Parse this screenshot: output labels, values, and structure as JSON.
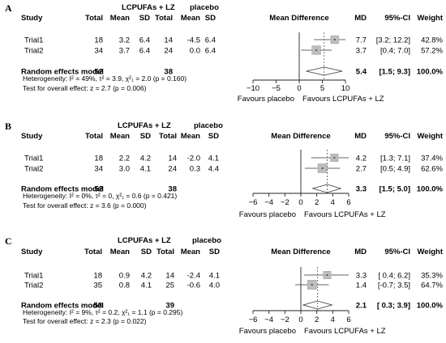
{
  "chart_data": [
    {
      "type": "forest",
      "panel_label": "A",
      "headers": {
        "study": "Study",
        "treatment_group": "LCPUFAs + LZ",
        "control_group": "placebo",
        "total": "Total",
        "mean": "Mean",
        "sd": "SD",
        "plot_title": "Mean Difference",
        "md": "MD",
        "ci": "95%-CI",
        "weight": "Weight"
      },
      "studies": [
        {
          "name": "Trial1",
          "t_total": "18",
          "t_mean": "3.2",
          "t_sd": "6.4",
          "c_total": "14",
          "c_mean": "-4.5",
          "c_sd": "6.4",
          "md": 7.7,
          "ci_low": 3.2,
          "ci_high": 12.2,
          "md_text": "7.7",
          "ci_text": "[3.2; 12.2]",
          "weight_text": "42.8%"
        },
        {
          "name": "Trial2",
          "t_total": "34",
          "t_mean": "3.7",
          "t_sd": "6.4",
          "c_total": "24",
          "c_mean": "0.0",
          "c_sd": "6.4",
          "md": 3.7,
          "ci_low": 0.4,
          "ci_high": 7.0,
          "md_text": "3.7",
          "ci_text": "[0.4; 7.0]",
          "weight_text": "57.2%"
        }
      ],
      "pooled": {
        "label": "Random effects model",
        "t_total": "52",
        "c_total": "38",
        "md": 5.4,
        "ci_low": 1.5,
        "ci_high": 9.3,
        "md_text": "5.4",
        "ci_text": "[1.5; 9.3]",
        "weight_text": "100.0%"
      },
      "heterogeneity": "Heterogeneity: I² = 49%, τ² = 3.9, χ²₁ = 2.0 (p = 0.160)",
      "overall_test": "Test for overall effect: z = 2.7 (p = 0.006)",
      "x_ticks": [
        -10,
        -5,
        0,
        5,
        10
      ],
      "x_tick_labels": [
        "−10",
        "−5",
        "0",
        "5",
        "10"
      ],
      "xlim": [
        -10,
        10
      ],
      "favours_left": "Favours placebo",
      "favours_right": "Favours LCPUFAs + LZ"
    },
    {
      "type": "forest",
      "panel_label": "B",
      "headers": {
        "study": "Study",
        "treatment_group": "LCPUFAs + LZ",
        "control_group": "placebo",
        "total": "Total",
        "mean": "Mean",
        "sd": "SD",
        "plot_title": "Mean Difference",
        "md": "MD",
        "ci": "95%-CI",
        "weight": "Weight"
      },
      "studies": [
        {
          "name": "Trial1",
          "t_total": "18",
          "t_mean": "2.2",
          "t_sd": "4.2",
          "c_total": "14",
          "c_mean": "-2.0",
          "c_sd": "4.1",
          "md": 4.2,
          "ci_low": 1.3,
          "ci_high": 7.1,
          "md_text": "4.2",
          "ci_text": "[1.3; 7.1]",
          "weight_text": "37.4%"
        },
        {
          "name": "Trial2",
          "t_total": "34",
          "t_mean": "3.0",
          "t_sd": "4.1",
          "c_total": "24",
          "c_mean": "0.3",
          "c_sd": "4.4",
          "md": 2.7,
          "ci_low": 0.5,
          "ci_high": 4.9,
          "md_text": "2.7",
          "ci_text": "[0.5; 4.9]",
          "weight_text": "62.6%"
        }
      ],
      "pooled": {
        "label": "Random effects model",
        "t_total": "52",
        "c_total": "38",
        "md": 3.3,
        "ci_low": 1.5,
        "ci_high": 5.0,
        "md_text": "3.3",
        "ci_text": "[1.5; 5.0]",
        "weight_text": "100.0%"
      },
      "heterogeneity": "Heterogeneity: I² = 0%, τ² = 0, χ²₁ = 0.6 (p = 0.421)",
      "overall_test": "Test for overall effect: z = 3.6 (p = 0.000)",
      "x_ticks": [
        -6,
        -4,
        -2,
        0,
        2,
        4,
        6
      ],
      "x_tick_labels": [
        "−6",
        "−4",
        "−2",
        "0",
        "2",
        "4",
        "6"
      ],
      "xlim": [
        -6,
        6
      ],
      "favours_left": "Favours placebo",
      "favours_right": "Favours LCPUFAs + LZ"
    },
    {
      "type": "forest",
      "panel_label": "C",
      "headers": {
        "study": "Study",
        "treatment_group": "LCPUFAs + LZ",
        "control_group": "placebo",
        "total": "Total",
        "mean": "Mean",
        "sd": "SD",
        "plot_title": "Mean Difference",
        "md": "MD",
        "ci": "95%-CI",
        "weight": "Weight"
      },
      "studies": [
        {
          "name": "Trial1",
          "t_total": "18",
          "t_mean": "0.9",
          "t_sd": "4.2",
          "c_total": "14",
          "c_mean": "-2.4",
          "c_sd": "4.1",
          "md": 3.3,
          "ci_low": 0.4,
          "ci_high": 6.2,
          "md_text": "3.3",
          "ci_text": "[ 0.4; 6.2]",
          "weight_text": "35.3%"
        },
        {
          "name": "Trial2",
          "t_total": "35",
          "t_mean": "0.8",
          "t_sd": "4.1",
          "c_total": "25",
          "c_mean": "-0.6",
          "c_sd": "4.0",
          "md": 1.4,
          "ci_low": -0.7,
          "ci_high": 3.5,
          "md_text": "1.4",
          "ci_text": "[-0.7; 3.5]",
          "weight_text": "64.7%"
        }
      ],
      "pooled": {
        "label": "Random effects model",
        "t_total": "53",
        "c_total": "39",
        "md": 2.1,
        "ci_low": 0.3,
        "ci_high": 3.9,
        "md_text": "2.1",
        "ci_text": "[ 0.3; 3.9]",
        "weight_text": "100.0%"
      },
      "heterogeneity": "Heterogeneity: I² = 9%, τ² = 0.2, χ²₁ = 1.1 (p = 0.295)",
      "overall_test": "Test for overall effect: z = 2.3 (p = 0.022)",
      "x_ticks": [
        -6,
        -4,
        -2,
        0,
        2,
        4,
        6
      ],
      "x_tick_labels": [
        "−6",
        "−4",
        "−2",
        "0",
        "2",
        "4",
        "6"
      ],
      "xlim": [
        -6,
        6
      ],
      "favours_left": "Favours placebo",
      "favours_right": "Favours LCPUFAs + LZ"
    }
  ]
}
